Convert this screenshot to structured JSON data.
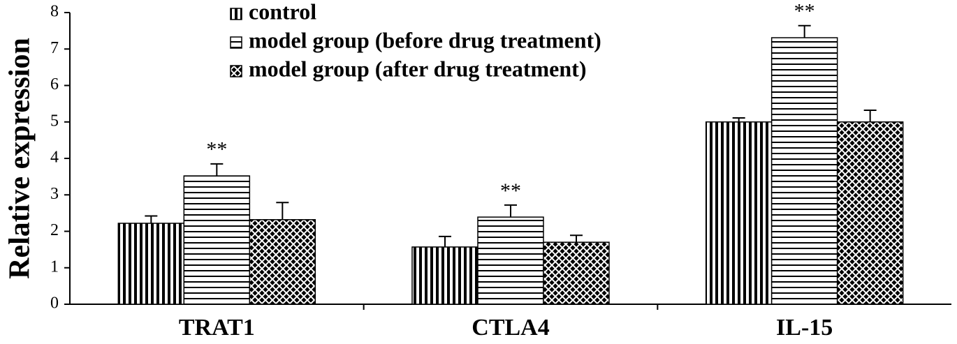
{
  "chart_data": {
    "type": "bar",
    "y_label": "Relative expression",
    "categories": [
      "TRAT1",
      "CTLA4",
      "IL-15"
    ],
    "series": [
      {
        "name": "control",
        "color": "#000000",
        "pattern": "vertical",
        "values": [
          2.22,
          1.57,
          5.0
        ],
        "errors": [
          0.2,
          0.29,
          0.11
        ]
      },
      {
        "name": "model group (before drug treatment)",
        "color": "#000000",
        "pattern": "horizontal",
        "values": [
          3.52,
          2.39,
          7.31
        ],
        "errors": [
          0.33,
          0.33,
          0.33
        ],
        "significance": [
          "**",
          "**",
          "**"
        ]
      },
      {
        "name": "model group (after drug treatment)",
        "color": "#000000",
        "pattern": "crosshatch",
        "values": [
          2.32,
          1.7,
          5.0
        ],
        "errors": [
          0.47,
          0.19,
          0.32
        ]
      }
    ],
    "ylim": [
      0,
      8
    ],
    "yticks": [
      0,
      1,
      2,
      3,
      4,
      5,
      6,
      7,
      8
    ],
    "grid": false,
    "legend": "top"
  }
}
